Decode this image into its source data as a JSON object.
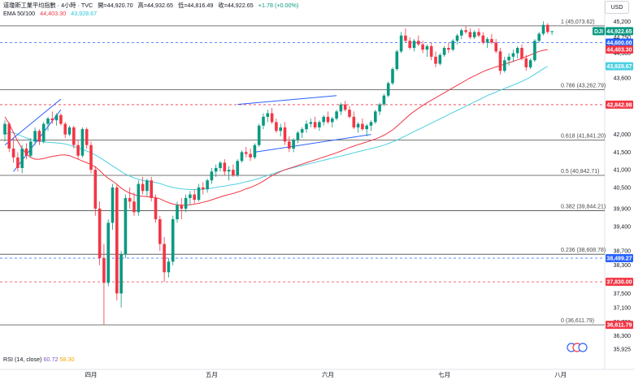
{
  "header": {
    "title": "道瓊斯工業平均指數 · 4小時 · TVC",
    "open_label": "開",
    "open": "=44,920.70",
    "high_label": "高",
    "high": "=44,932.65",
    "low_label": "低",
    "low": "=44,816.49",
    "close_label": "收",
    "close": "=44,922.65",
    "change": "+1.78 (+0.00%)",
    "ema_label": "EMA 50/100",
    "ema50": "44,403.30",
    "ema100": "43,928.67"
  },
  "currency_button": "USD",
  "rsi": {
    "label": "RSI (14, close)",
    "v1": "60.72",
    "v2": "58.30"
  },
  "colors": {
    "up": "#089981",
    "down": "#f23645",
    "ema50": "#f23645",
    "ema100": "#4dd0e1",
    "fib": "#4a4a4a",
    "channel": "#2962ff",
    "dashed_red": "#f23645",
    "dashed_blue": "#2962ff"
  },
  "chart_data": {
    "type": "candlestick",
    "title": "道瓊斯工業平均指數 · 4小時 · TVC",
    "ylim": [
      35925,
      45300
    ],
    "y_ticks": [
      45200,
      44750,
      44300,
      43600,
      42900,
      42000,
      41500,
      41000,
      40500,
      39900,
      39400,
      38700,
      38300,
      37850,
      37500,
      37100,
      36700,
      36300,
      35925
    ],
    "y_tick_labels": [
      "45,200",
      "44,750",
      "44,300",
      "43,600",
      "42,900",
      "42,000",
      "41,500",
      "41,000",
      "40,500",
      "39,900",
      "39,400",
      "38,700",
      "38,300",
      "37,850",
      "37,500",
      "37,100",
      "36,700",
      "36,300",
      "35,925"
    ],
    "x_tick_labels": [
      {
        "label": "四月",
        "index": 20
      },
      {
        "label": "五月",
        "index": 48
      },
      {
        "label": "六月",
        "index": 75
      },
      {
        "label": "七月",
        "index": 102
      },
      {
        "label": "八月",
        "index": 129
      }
    ],
    "fib_levels": [
      {
        "ratio": "1",
        "value": 45073.62,
        "label": "1 (45,073.62)"
      },
      {
        "ratio": "0.786",
        "value": 43262.79,
        "label": "0.786 (43,262.79)"
      },
      {
        "ratio": "0.618",
        "value": 41841.2,
        "label": "0.618 (41,841.20)"
      },
      {
        "ratio": "0.5",
        "value": 40842.71,
        "label": "0.5 (40,842.71)"
      },
      {
        "ratio": "0.382",
        "value": 39844.21,
        "label": "0.382 (39,844.21)"
      },
      {
        "ratio": "0.236",
        "value": 38608.78,
        "label": "0.236 (38,608.78)"
      },
      {
        "ratio": "0",
        "value": 36611.79,
        "label": "0 (36,611.79)"
      }
    ],
    "price_badges": [
      {
        "text": "DJI",
        "value": 44922.65,
        "color": "#089981"
      },
      {
        "text": "44,922.65",
        "value": 44922.65,
        "color": "#089981"
      },
      {
        "text": "44,600.00",
        "value": 44600.0,
        "color": "#2962ff"
      },
      {
        "text": "44,403.30",
        "value": 44403.3,
        "color": "#f23645"
      },
      {
        "text": "43,928.67",
        "value": 43928.67,
        "color": "#4dd0e1"
      },
      {
        "text": "42,842.98",
        "value": 42842.98,
        "color": "#f23645"
      },
      {
        "text": "38,499.27",
        "value": 38499.27,
        "color": "#2962ff"
      },
      {
        "text": "37,830.00",
        "value": 37830.0,
        "color": "#f23645"
      },
      {
        "text": "36,611.79",
        "value": 36611.79,
        "color": "#f23645"
      }
    ],
    "horizontal_dashed": [
      {
        "value": 44600.0,
        "color": "#2962ff"
      },
      {
        "value": 42842.98,
        "color": "#f23645"
      },
      {
        "value": 38499.27,
        "color": "#2962ff"
      },
      {
        "value": 37830.0,
        "color": "#f23645"
      }
    ],
    "candles": [
      [
        42000,
        42400,
        41800,
        42300
      ],
      [
        42300,
        42350,
        41500,
        41600
      ],
      [
        41600,
        41900,
        41200,
        41350
      ],
      [
        41350,
        41500,
        40950,
        41050
      ],
      [
        41050,
        41700,
        40900,
        41600
      ],
      [
        41600,
        41750,
        41300,
        41400
      ],
      [
        41400,
        41900,
        41350,
        41800
      ],
      [
        41800,
        42200,
        41700,
        42100
      ],
      [
        42100,
        42150,
        41700,
        41800
      ],
      [
        41800,
        42350,
        41750,
        42300
      ],
      [
        42300,
        42500,
        42100,
        42450
      ],
      [
        42450,
        42650,
        42300,
        42400
      ],
      [
        42400,
        42600,
        42250,
        42550
      ],
      [
        42550,
        42600,
        42250,
        42300
      ],
      [
        42300,
        42350,
        41900,
        42000
      ],
      [
        42000,
        42250,
        41950,
        42200
      ],
      [
        42200,
        42250,
        41600,
        41700
      ],
      [
        41700,
        41850,
        41300,
        41400
      ],
      [
        41400,
        42200,
        41350,
        42150
      ],
      [
        42150,
        42200,
        41600,
        41700
      ],
      [
        41700,
        41800,
        40900,
        41000
      ],
      [
        41000,
        41100,
        39700,
        39900
      ],
      [
        39900,
        40100,
        38300,
        38500
      ],
      [
        38500,
        38900,
        36611,
        37800
      ],
      [
        37800,
        39600,
        37700,
        39500
      ],
      [
        39500,
        40600,
        39300,
        40500
      ],
      [
        40500,
        40600,
        37300,
        37500
      ],
      [
        37500,
        38700,
        37100,
        38600
      ],
      [
        38600,
        40300,
        38500,
        40200
      ],
      [
        40200,
        40500,
        39900,
        40100
      ],
      [
        40100,
        40350,
        39700,
        39800
      ],
      [
        39800,
        40700,
        39700,
        40600
      ],
      [
        40600,
        40800,
        40300,
        40400
      ],
      [
        40400,
        40750,
        40250,
        40700
      ],
      [
        40700,
        40800,
        40100,
        40200
      ],
      [
        40200,
        40300,
        39500,
        39600
      ],
      [
        39600,
        39700,
        38700,
        38900
      ],
      [
        38900,
        39100,
        37830,
        38100
      ],
      [
        38100,
        38500,
        37950,
        38400
      ],
      [
        38400,
        39700,
        38300,
        39600
      ],
      [
        39600,
        40100,
        39500,
        40000
      ],
      [
        40000,
        40200,
        39600,
        39900
      ],
      [
        39900,
        40300,
        39800,
        40200
      ],
      [
        40200,
        40400,
        40000,
        40300
      ],
      [
        40300,
        40450,
        40050,
        40150
      ],
      [
        40150,
        40600,
        40100,
        40500
      ],
      [
        40500,
        40650,
        40300,
        40450
      ],
      [
        40450,
        40750,
        40350,
        40700
      ],
      [
        40700,
        41050,
        40600,
        40950
      ],
      [
        40950,
        41150,
        40800,
        41050
      ],
      [
        41050,
        41250,
        40950,
        41200
      ],
      [
        41200,
        41300,
        40850,
        40950
      ],
      [
        40950,
        41100,
        40700,
        41000
      ],
      [
        41000,
        41150,
        40800,
        40850
      ],
      [
        40850,
        41300,
        40800,
        41250
      ],
      [
        41250,
        41550,
        41200,
        41500
      ],
      [
        41500,
        41650,
        41350,
        41450
      ],
      [
        41450,
        41600,
        41250,
        41350
      ],
      [
        41350,
        41750,
        41300,
        41700
      ],
      [
        41700,
        42300,
        41650,
        42250
      ],
      [
        42250,
        42600,
        42150,
        42500
      ],
      [
        42500,
        42700,
        42350,
        42600
      ],
      [
        42600,
        42750,
        42300,
        42350
      ],
      [
        42350,
        42450,
        42050,
        42100
      ],
      [
        42100,
        42300,
        41950,
        42200
      ],
      [
        42200,
        42350,
        41700,
        41800
      ],
      [
        41800,
        41950,
        41500,
        41600
      ],
      [
        41600,
        41900,
        41500,
        41850
      ],
      [
        41850,
        42100,
        41750,
        42050
      ],
      [
        42050,
        42200,
        41900,
        42150
      ],
      [
        42150,
        42400,
        42050,
        42300
      ],
      [
        42300,
        42450,
        42200,
        42350
      ],
      [
        42350,
        42500,
        42150,
        42200
      ],
      [
        42200,
        42400,
        42100,
        42350
      ],
      [
        42350,
        42550,
        42250,
        42500
      ],
      [
        42500,
        42650,
        42300,
        42350
      ],
      [
        42350,
        42500,
        42200,
        42450
      ],
      [
        42450,
        42700,
        42400,
        42650
      ],
      [
        42650,
        42900,
        42550,
        42850
      ],
      [
        42850,
        42950,
        42650,
        42700
      ],
      [
        42700,
        42800,
        42450,
        42500
      ],
      [
        42500,
        42650,
        42150,
        42200
      ],
      [
        42200,
        42350,
        42050,
        42300
      ],
      [
        42300,
        42450,
        42100,
        42150
      ],
      [
        42150,
        42300,
        41950,
        42250
      ],
      [
        42250,
        42400,
        42100,
        42350
      ],
      [
        42350,
        42700,
        42300,
        42650
      ],
      [
        42650,
        42900,
        42550,
        42850
      ],
      [
        42850,
        43150,
        42800,
        43100
      ],
      [
        43100,
        43500,
        43050,
        43450
      ],
      [
        43450,
        43900,
        43400,
        43850
      ],
      [
        43850,
        44400,
        43800,
        44350
      ],
      [
        44350,
        44900,
        44300,
        44800
      ],
      [
        44800,
        45000,
        44600,
        44650
      ],
      [
        44650,
        44750,
        44400,
        44450
      ],
      [
        44450,
        44700,
        44350,
        44650
      ],
      [
        44650,
        44800,
        44500,
        44550
      ],
      [
        44550,
        44650,
        44300,
        44400
      ],
      [
        44400,
        44550,
        44200,
        44500
      ],
      [
        44500,
        44600,
        44100,
        44200
      ],
      [
        44200,
        44350,
        43900,
        44000
      ],
      [
        44000,
        44300,
        43950,
        44250
      ],
      [
        44250,
        44500,
        44200,
        44450
      ],
      [
        44450,
        44600,
        44300,
        44400
      ],
      [
        44400,
        44700,
        44350,
        44650
      ],
      [
        44650,
        44850,
        44550,
        44800
      ],
      [
        44800,
        45000,
        44700,
        44950
      ],
      [
        44950,
        45073,
        44850,
        44900
      ],
      [
        44900,
        45000,
        44700,
        44750
      ],
      [
        44750,
        44950,
        44700,
        44900
      ],
      [
        44900,
        45000,
        44750,
        44800
      ],
      [
        44800,
        44900,
        44550,
        44600
      ],
      [
        44600,
        44750,
        44450,
        44700
      ],
      [
        44700,
        44850,
        44550,
        44600
      ],
      [
        44600,
        44700,
        44300,
        44350
      ],
      [
        44350,
        44450,
        43700,
        43800
      ],
      [
        43800,
        44200,
        43750,
        44100
      ],
      [
        44100,
        44300,
        43950,
        44200
      ],
      [
        44200,
        44400,
        44050,
        44300
      ],
      [
        44300,
        44500,
        44150,
        44450
      ],
      [
        44450,
        44550,
        44100,
        44150
      ],
      [
        44150,
        44250,
        43800,
        43900
      ],
      [
        43900,
        44150,
        43850,
        44100
      ],
      [
        44100,
        44700,
        44050,
        44650
      ],
      [
        44650,
        44900,
        44600,
        44850
      ],
      [
        44850,
        45200,
        44800,
        45100
      ],
      [
        45100,
        45150,
        44850,
        44900
      ],
      [
        44900,
        44933,
        44816,
        44923
      ]
    ],
    "ema50": [
      42500,
      42300,
      42050,
      41800,
      41600,
      41450,
      41350,
      41300,
      41300,
      41320,
      41350,
      41380,
      41400,
      41420,
      41420,
      41400,
      41350,
      41300,
      41250,
      41200,
      41150,
      41080,
      40980,
      40860,
      40760,
      40680,
      40590,
      40480,
      40400,
      40340,
      40300,
      40260,
      40250,
      40240,
      40230,
      40210,
      40180,
      40120,
      40070,
      40030,
      40010,
      40000,
      40000,
      40010,
      40030,
      40050,
      40080,
      40110,
      40150,
      40190,
      40230,
      40270,
      40300,
      40330,
      40370,
      40410,
      40460,
      40500,
      40550,
      40610,
      40680,
      40760,
      40830,
      40890,
      40950,
      41000,
      41040,
      41080,
      41120,
      41160,
      41200,
      41240,
      41280,
      41320,
      41360,
      41400,
      41440,
      41480,
      41530,
      41580,
      41630,
      41670,
      41710,
      41750,
      41790,
      41830,
      41870,
      41920,
      41980,
      42050,
      42130,
      42230,
      42340,
      42450,
      42560,
      42650,
      42740,
      42820,
      42900,
      42970,
      43040,
      43110,
      43180,
      43250,
      43320,
      43390,
      43460,
      43530,
      43600,
      43660,
      43720,
      43780,
      43830,
      43870,
      43910,
      43950,
      43990,
      44030,
      44070,
      44110,
      44150,
      44200,
      44250,
      44300,
      44350,
      44380,
      44403
    ],
    "ema100": [
      42000,
      42050,
      42050,
      42000,
      41950,
      41900,
      41850,
      41820,
      41800,
      41790,
      41780,
      41770,
      41760,
      41750,
      41730,
      41700,
      41660,
      41620,
      41580,
      41530,
      41480,
      41420,
      41350,
      41270,
      41190,
      41110,
      41030,
      40950,
      40880,
      40820,
      40770,
      40730,
      40700,
      40680,
      40660,
      40640,
      40610,
      40570,
      40530,
      40500,
      40480,
      40460,
      40450,
      40440,
      40440,
      40440,
      40450,
      40460,
      40480,
      40500,
      40520,
      40540,
      40560,
      40580,
      40600,
      40630,
      40660,
      40690,
      40720,
      40760,
      40800,
      40840,
      40880,
      40920,
      40960,
      41000,
      41030,
      41060,
      41090,
      41120,
      41150,
      41180,
      41210,
      41240,
      41270,
      41300,
      41330,
      41360,
      41390,
      41420,
      41450,
      41480,
      41510,
      41540,
      41570,
      41600,
      41630,
      41660,
      41700,
      41740,
      41790,
      41840,
      41900,
      41960,
      42020,
      42080,
      42140,
      42200,
      42260,
      42320,
      42380,
      42440,
      42500,
      42560,
      42620,
      42680,
      42740,
      42800,
      42860,
      42920,
      42980,
      43040,
      43100,
      43150,
      43200,
      43250,
      43300,
      43350,
      43400,
      43450,
      43500,
      43560,
      43620,
      43700,
      43780,
      43860,
      43928
    ]
  }
}
